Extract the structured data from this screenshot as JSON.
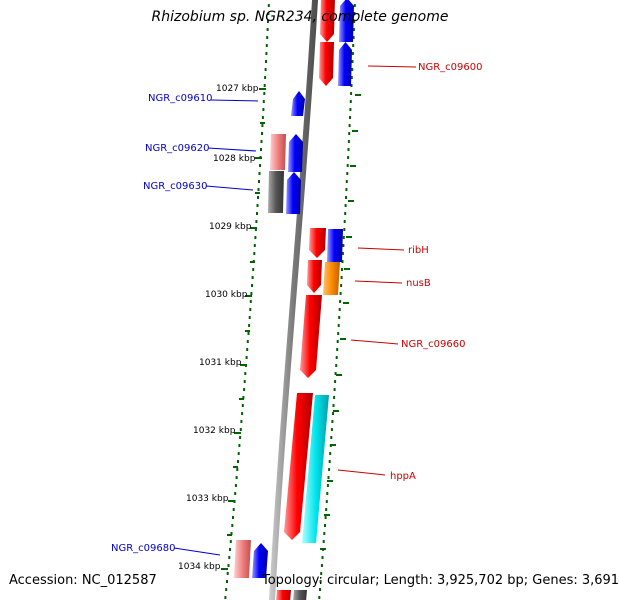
{
  "title": "Rhizobium sp. NGR234, complete genome",
  "footer": {
    "accession": "Accession: NC_012587",
    "topology": "Topology: circular; Length: 3,925,702 bp; Genes: 3,691"
  },
  "colors": {
    "forward_red": "#ff0000",
    "forward_pink": "#f08080",
    "reverse_blue": "#0000ff",
    "grey": "#555555",
    "orange": "#ff8c00",
    "cyan": "#00e5ee",
    "tick_green": "#006400",
    "label_red": "#cc0000",
    "label_blue": "#0000cc"
  },
  "kbp_labels": [
    "1027 kbp",
    "1028 kbp",
    "1029 kbp",
    "1030 kbp",
    "1031 kbp",
    "1032 kbp",
    "1033 kbp",
    "1034 kbp"
  ],
  "gene_labels": [
    {
      "name": "NGR_c09600",
      "color": "red"
    },
    {
      "name": "NGR_c09610",
      "color": "blue"
    },
    {
      "name": "NGR_c09620",
      "color": "blue"
    },
    {
      "name": "NGR_c09630",
      "color": "blue"
    },
    {
      "name": "ribH",
      "color": "red"
    },
    {
      "name": "nusB",
      "color": "red"
    },
    {
      "name": "NGR_c09660",
      "color": "red"
    },
    {
      "name": "hppA",
      "color": "red"
    },
    {
      "name": "NGR_c09680",
      "color": "blue"
    }
  ]
}
